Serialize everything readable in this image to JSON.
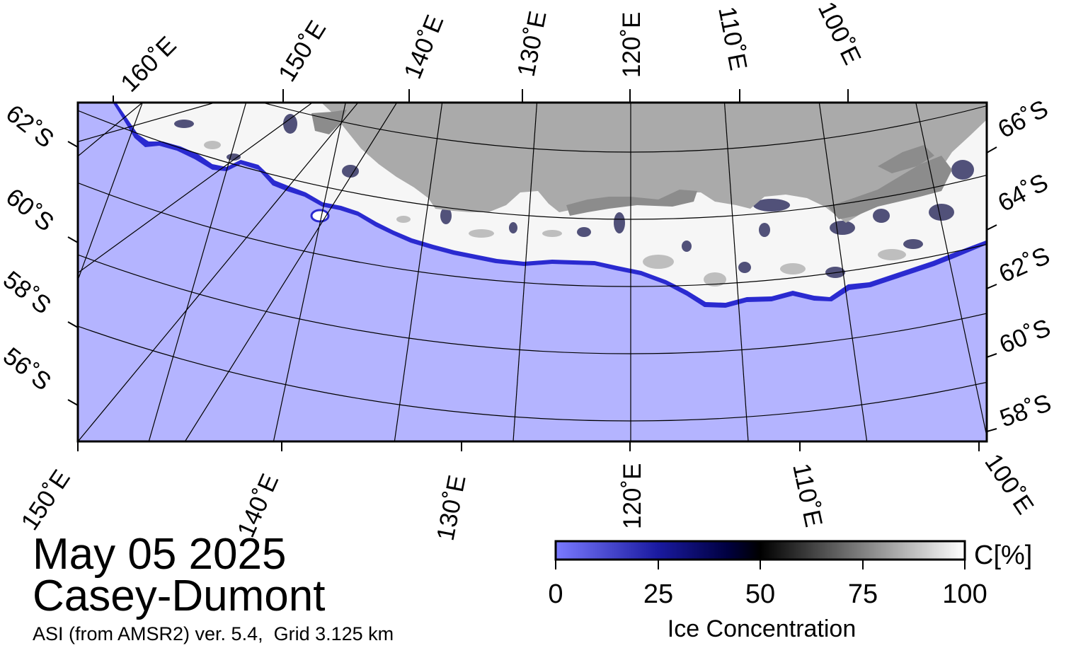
{
  "colors": {
    "ocean": "#b4b4ff",
    "land": "#aaaaaa",
    "grounded_ice": "#8c8c8c",
    "ice_high": "#ffffff",
    "ice_edge": "#2a2ad0",
    "grid": "#000000"
  },
  "map": {
    "top_longitudes": [
      "160˚E",
      "150˚E",
      "140˚E",
      "130˚E",
      "120˚E",
      "110˚E",
      "100˚E"
    ],
    "bottom_longitudes": [
      "150˚E",
      "140˚E",
      "130˚E",
      "120˚E",
      "110˚E",
      "100˚E"
    ],
    "left_latitudes": [
      "62˚S",
      "60˚S",
      "58˚S",
      "56˚S"
    ],
    "right_latitudes": [
      "66˚S",
      "64˚S",
      "62˚S",
      "60˚S",
      "58˚S"
    ]
  },
  "info": {
    "date": "May 05 2025",
    "region": "Casey-Dumont",
    "product": "ASI (from AMSR2) ver. 5.4,  Grid 3.125 km"
  },
  "colorbar": {
    "ticks": [
      "0",
      "25",
      "50",
      "75",
      "100"
    ],
    "title": "Ice Concentration",
    "unit": "C[%]",
    "stops": [
      {
        "at": 0,
        "color": "#7a7aff"
      },
      {
        "at": 0.25,
        "color": "#1a1aa0"
      },
      {
        "at": 0.42,
        "color": "#000040"
      },
      {
        "at": 0.5,
        "color": "#000000"
      },
      {
        "at": 0.75,
        "color": "#808080"
      },
      {
        "at": 1,
        "color": "#ffffff"
      }
    ]
  }
}
